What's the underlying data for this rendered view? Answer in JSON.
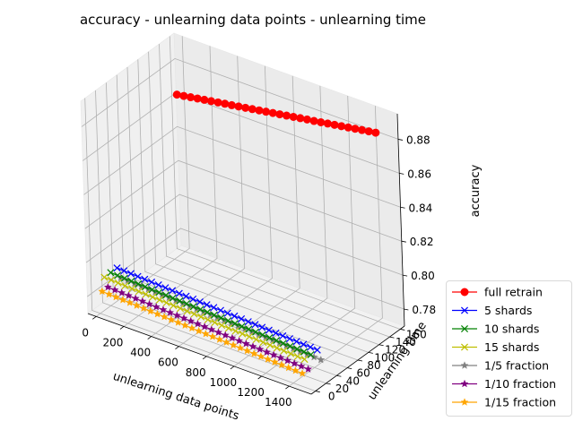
{
  "chart_data": {
    "type": "line",
    "title": "accuracy - unlearning data points - unlearning time",
    "xlabel": "unlearning data points",
    "ylabel": "unlearning time",
    "zlabel": "accuracy",
    "xlim": [
      -60,
      1560
    ],
    "ylim": [
      -8,
      168
    ],
    "zlim": [
      0.77,
      0.895
    ],
    "xticks": [
      0,
      200,
      400,
      600,
      800,
      1000,
      1200,
      1400
    ],
    "yticks": [
      0,
      20,
      40,
      60,
      80,
      100,
      120,
      140,
      160
    ],
    "zticks": [
      0.78,
      0.8,
      0.82,
      0.84,
      0.86,
      0.88
    ],
    "grid": true,
    "legend_position": "lower-right outside",
    "x": [
      10,
      60,
      110,
      160,
      210,
      260,
      310,
      360,
      410,
      460,
      510,
      560,
      610,
      660,
      710,
      760,
      810,
      860,
      910,
      960,
      1010,
      1060,
      1110,
      1160,
      1210,
      1260,
      1310,
      1360,
      1410,
      1460
    ],
    "series": [
      {
        "name": "full retrain",
        "color": "#ff0000",
        "marker": "circle",
        "y": 152,
        "z": [
          0.8645,
          0.8652,
          0.8659,
          0.8666,
          0.8673,
          0.868,
          0.8687,
          0.8694,
          0.87,
          0.8707,
          0.8714,
          0.8721,
          0.8728,
          0.8735,
          0.8742,
          0.8749,
          0.8756,
          0.8763,
          0.877,
          0.8777,
          0.8783,
          0.879,
          0.8797,
          0.8804,
          0.8811,
          0.8818,
          0.8825,
          0.8832,
          0.8839,
          0.8846
        ]
      },
      {
        "name": "5 shards",
        "color": "#0000ff",
        "marker": "x",
        "y": 31,
        "z": [
          0.79,
          0.7898,
          0.7896,
          0.7894,
          0.7892,
          0.789,
          0.7888,
          0.7886,
          0.7884,
          0.7882,
          0.788,
          0.7878,
          0.7876,
          0.7874,
          0.7872,
          0.787,
          0.7868,
          0.7866,
          0.7864,
          0.7862,
          0.786,
          0.7858,
          0.7856,
          0.7854,
          0.7852,
          0.785,
          0.7848,
          0.7846,
          0.7844,
          0.7842
        ]
      },
      {
        "name": "10 shards",
        "color": "#008000",
        "marker": "x",
        "y": 19,
        "z": [
          0.79,
          0.7898,
          0.7896,
          0.7894,
          0.7892,
          0.789,
          0.7888,
          0.7886,
          0.7884,
          0.7882,
          0.788,
          0.7878,
          0.7876,
          0.7874,
          0.7872,
          0.787,
          0.7868,
          0.7866,
          0.7864,
          0.7862,
          0.786,
          0.7858,
          0.7856,
          0.7854,
          0.7852,
          0.785,
          0.7848,
          0.7846,
          0.7844,
          0.7842
        ]
      },
      {
        "name": "15 shards",
        "color": "#bfbf00",
        "marker": "x",
        "y": 7,
        "z": [
          0.79,
          0.7898,
          0.7896,
          0.7894,
          0.7892,
          0.789,
          0.7888,
          0.7886,
          0.7884,
          0.7882,
          0.788,
          0.7878,
          0.7876,
          0.7874,
          0.7872,
          0.787,
          0.7868,
          0.7866,
          0.7864,
          0.7862,
          0.786,
          0.7858,
          0.7856,
          0.7854,
          0.7852,
          0.785,
          0.7848,
          0.7846,
          0.7844,
          0.7842
        ]
      },
      {
        "name": "1/5 fraction",
        "color": "#808080",
        "marker": "star",
        "y": 37,
        "z": [
          0.7828,
          0.7826,
          0.7824,
          0.7822,
          0.782,
          0.7818,
          0.7816,
          0.7814,
          0.7812,
          0.781,
          0.7808,
          0.7806,
          0.7804,
          0.7802,
          0.78,
          0.7798,
          0.7796,
          0.7794,
          0.7792,
          0.779,
          0.7788,
          0.7786,
          0.7784,
          0.7782,
          0.778,
          0.7778,
          0.7776,
          0.7774,
          0.7772,
          0.777
        ]
      },
      {
        "name": "1/10 fraction",
        "color": "#800080",
        "marker": "star",
        "y": 13,
        "z": [
          0.7828,
          0.7826,
          0.7824,
          0.7822,
          0.782,
          0.7818,
          0.7816,
          0.7814,
          0.7812,
          0.781,
          0.7808,
          0.7806,
          0.7804,
          0.7802,
          0.78,
          0.7798,
          0.7796,
          0.7794,
          0.7792,
          0.779,
          0.7788,
          0.7786,
          0.7784,
          0.7782,
          0.778,
          0.7778,
          0.7776,
          0.7774,
          0.7772,
          0.777
        ]
      },
      {
        "name": "1/15 fraction",
        "color": "#ffa500",
        "marker": "star",
        "y": 2,
        "z": [
          0.7828,
          0.7826,
          0.7824,
          0.7822,
          0.782,
          0.7818,
          0.7816,
          0.7814,
          0.7812,
          0.781,
          0.7808,
          0.7806,
          0.7804,
          0.7802,
          0.78,
          0.7798,
          0.7796,
          0.7794,
          0.7792,
          0.779,
          0.7788,
          0.7786,
          0.7784,
          0.7782,
          0.778,
          0.7778,
          0.7776,
          0.7774,
          0.7772,
          0.777
        ]
      }
    ]
  }
}
